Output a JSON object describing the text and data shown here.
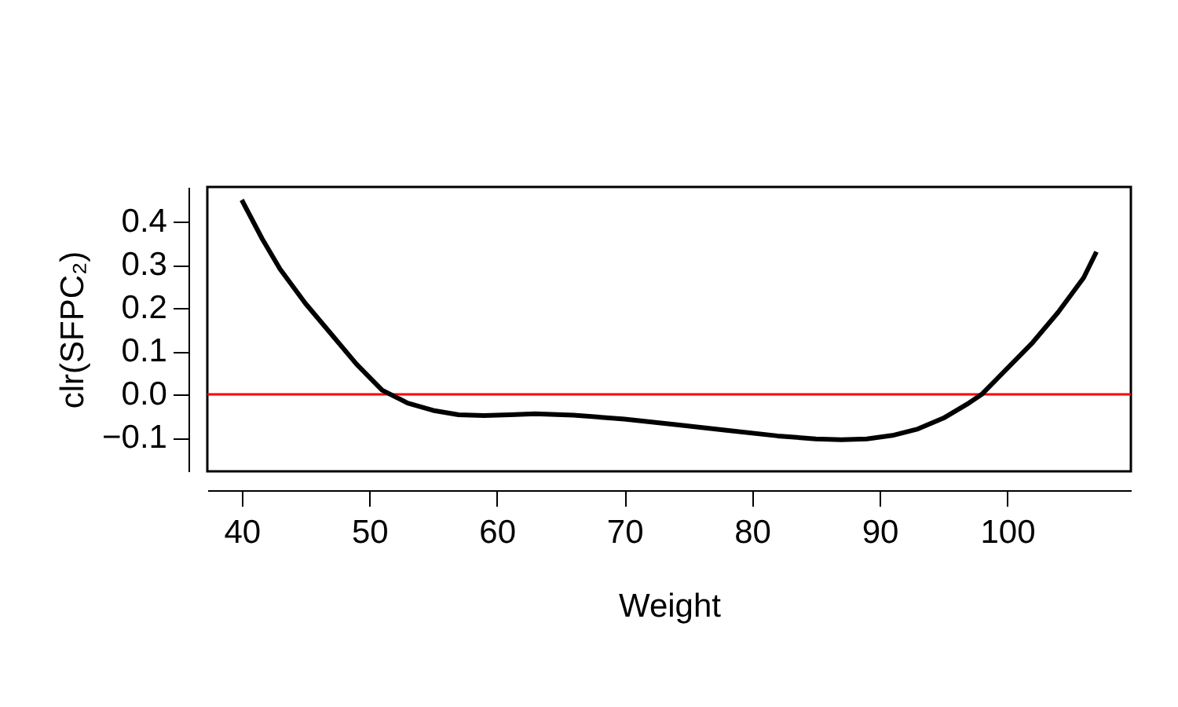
{
  "chart_data": {
    "type": "line",
    "xlabel": "Weight",
    "ylabel": "clr(SFPC₂)",
    "x": [
      40,
      41.6,
      43,
      45,
      47,
      49,
      51,
      53,
      55,
      57,
      59,
      61,
      63,
      66,
      70,
      74,
      78,
      82,
      85,
      87,
      89,
      91,
      93,
      95,
      97,
      98,
      100,
      102,
      104,
      106,
      107
    ],
    "series": [
      {
        "color": "#000000",
        "values": [
          0.45,
          0.36,
          0.29,
          0.21,
          0.14,
          0.07,
          0.01,
          -0.02,
          -0.037,
          -0.047,
          -0.049,
          -0.047,
          -0.045,
          -0.048,
          -0.057,
          -0.07,
          -0.083,
          -0.096,
          -0.103,
          -0.105,
          -0.103,
          -0.095,
          -0.08,
          -0.055,
          -0.02,
          0.0,
          0.06,
          0.12,
          0.19,
          0.27,
          0.33
        ]
      }
    ],
    "xlim": [
      37.3,
      109.7
    ],
    "ylim": [
      -0.178,
      0.48
    ],
    "xticks": [
      40,
      50,
      60,
      70,
      80,
      90,
      100
    ],
    "yticks": [
      {
        "value": -0.1,
        "label": "−0.1"
      },
      {
        "value": 0.0,
        "label": "0.0"
      },
      {
        "value": 0.1,
        "label": "0.1"
      },
      {
        "value": 0.2,
        "label": "0.2"
      },
      {
        "value": 0.3,
        "label": "0.3"
      },
      {
        "value": 0.4,
        "label": "0.4"
      }
    ],
    "ref_lines": [
      {
        "axis": "y",
        "value": 0,
        "color": "#ff0000",
        "line_style": "solid"
      }
    ],
    "grid": false,
    "marker": "none",
    "line_style": "solid"
  }
}
